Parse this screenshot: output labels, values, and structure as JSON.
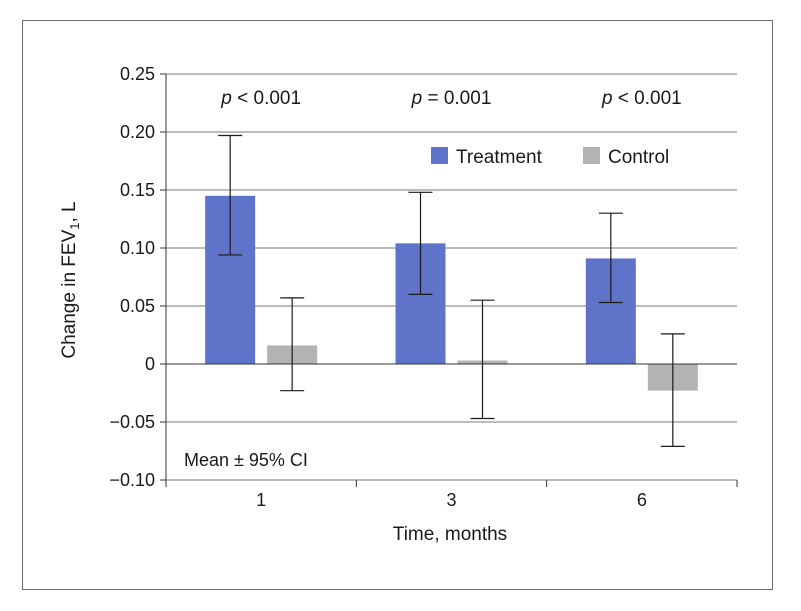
{
  "chart_data": {
    "type": "bar",
    "categories": [
      "1",
      "3",
      "6"
    ],
    "xlabel": "Time, months",
    "ylabel_main": "Change in FEV",
    "ylabel_sub": "1",
    "ylabel_tail": ", L",
    "ylim": [
      -0.1,
      0.25
    ],
    "yticks": [
      {
        "v": 0.25,
        "label": "0.25"
      },
      {
        "v": 0.2,
        "label": "0.20"
      },
      {
        "v": 0.15,
        "label": "0.15"
      },
      {
        "v": 0.1,
        "label": "0.10"
      },
      {
        "v": 0.05,
        "label": "0.05"
      },
      {
        "v": 0.0,
        "label": "0"
      },
      {
        "v": -0.05,
        "label": "−0.05"
      },
      {
        "v": -0.1,
        "label": "−0.10"
      }
    ],
    "grid": true,
    "legend_position": "top-right",
    "series": [
      {
        "name": "Treatment",
        "color": "#5f73c9",
        "values": [
          0.145,
          0.104,
          0.091
        ],
        "ci_low": [
          0.094,
          0.06,
          0.053
        ],
        "ci_high": [
          0.197,
          0.148,
          0.13
        ]
      },
      {
        "name": "Control",
        "color": "#b3b3b3",
        "values": [
          0.016,
          0.003,
          -0.023
        ],
        "ci_low": [
          -0.023,
          -0.047,
          -0.071
        ],
        "ci_high": [
          0.057,
          0.055,
          0.026
        ]
      }
    ],
    "annotations": [
      {
        "p": "p",
        "rest": " < 0.001"
      },
      {
        "p": "p",
        "rest": " = 0.001"
      },
      {
        "p": "p",
        "rest": " < 0.001"
      }
    ],
    "note": "Mean ± 95% CI"
  }
}
